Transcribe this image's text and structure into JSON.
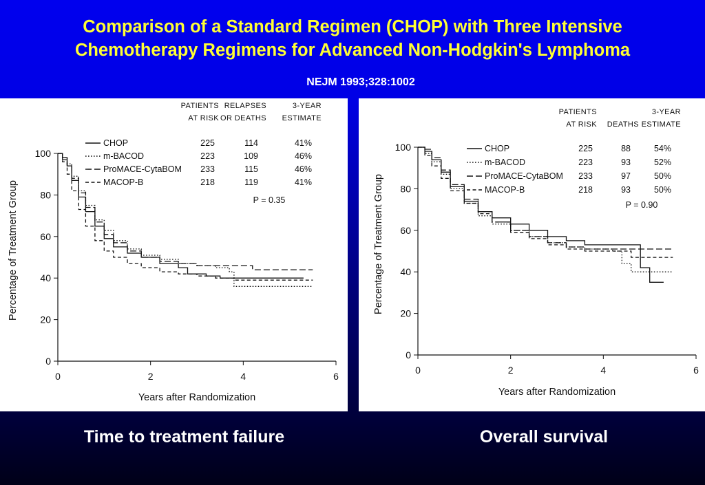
{
  "slide": {
    "title_line1": "Comparison of a Standard Regimen (CHOP) with Three Intensive",
    "title_line2": "Chemotherapy Regimens for Advanced  Non-Hodgkin's Lymphoma",
    "citation": "NEJM 1993;328:1002",
    "caption_left": "Time to treatment failure",
    "caption_right": "Overall survival",
    "colors": {
      "title": "#ffff33",
      "background": "#0000e6",
      "caption": "#ffffff"
    }
  },
  "chart_data": [
    {
      "type": "line",
      "xlabel": "Years after Randomization",
      "ylabel": "Percentage of Treatment Group",
      "xlim": [
        0,
        6
      ],
      "ylim": [
        0,
        100
      ],
      "xticks": [
        "0",
        "2",
        "4",
        "6"
      ],
      "yticks": [
        "0",
        "20",
        "40",
        "60",
        "80",
        "100"
      ],
      "table_headers": [
        "PATIENTS AT RISK",
        "RELAPSES OR DEATHS",
        "3-YEAR ESTIMATE"
      ],
      "p_value": "P = 0.35",
      "legend_position": "top",
      "series": [
        {
          "name": "CHOP",
          "style": "solid",
          "at_risk": "225",
          "events": "114",
          "estimate": "41%",
          "x": [
            0,
            0.1,
            0.2,
            0.3,
            0.45,
            0.6,
            0.8,
            1.0,
            1.2,
            1.5,
            1.8,
            2.2,
            2.6,
            2.8,
            3.2,
            3.5,
            3.8,
            4.2,
            4.6,
            5.3
          ],
          "y": [
            100,
            98,
            94,
            87,
            79,
            72,
            65,
            59,
            55,
            52,
            50,
            47,
            45,
            42,
            41,
            40,
            40,
            40,
            40,
            40
          ]
        },
        {
          "name": "m-BACOD",
          "style": "dotted",
          "at_risk": "223",
          "events": "109",
          "estimate": "46%",
          "x": [
            0,
            0.1,
            0.2,
            0.3,
            0.45,
            0.6,
            0.8,
            1.0,
            1.2,
            1.5,
            1.8,
            2.2,
            2.6,
            3.0,
            3.4,
            3.7,
            3.8,
            4.2,
            4.6,
            5.0,
            5.5
          ],
          "y": [
            100,
            98,
            95,
            89,
            82,
            75,
            68,
            63,
            58,
            54,
            51,
            49,
            47,
            46,
            45,
            43,
            36,
            36,
            36,
            36,
            36
          ]
        },
        {
          "name": "ProMACE-CytaBOM",
          "style": "longdash",
          "at_risk": "233",
          "events": "115",
          "estimate": "46%",
          "x": [
            0,
            0.1,
            0.2,
            0.3,
            0.45,
            0.6,
            0.8,
            1.0,
            1.2,
            1.5,
            1.8,
            2.2,
            2.6,
            3.0,
            3.4,
            4.0,
            4.2,
            4.6,
            5.0,
            5.5
          ],
          "y": [
            100,
            97,
            94,
            88,
            81,
            74,
            67,
            61,
            57,
            53,
            50,
            48,
            47,
            46,
            46,
            46,
            44,
            44,
            44,
            44
          ]
        },
        {
          "name": "MACOP-B",
          "style": "dashed",
          "at_risk": "218",
          "events": "119",
          "estimate": "41%",
          "x": [
            0,
            0.1,
            0.2,
            0.3,
            0.45,
            0.6,
            0.8,
            1.0,
            1.2,
            1.5,
            1.8,
            2.2,
            2.6,
            3.0,
            3.4,
            3.8,
            4.2,
            4.6,
            5.0,
            5.5
          ],
          "y": [
            100,
            96,
            90,
            82,
            73,
            65,
            58,
            53,
            50,
            47,
            45,
            43,
            42,
            41,
            40,
            39,
            39,
            39,
            39,
            39
          ]
        }
      ]
    },
    {
      "type": "line",
      "xlabel": "Years after Randomization",
      "ylabel": "Percentage of Treatment Group",
      "xlim": [
        0,
        6
      ],
      "ylim": [
        0,
        100
      ],
      "xticks": [
        "0",
        "2",
        "4",
        "6"
      ],
      "yticks": [
        "0",
        "20",
        "40",
        "60",
        "80",
        "100"
      ],
      "table_headers": [
        "PATIENTS AT RISK",
        "DEATHS",
        "3-YEAR ESTIMATE"
      ],
      "p_value": "P = 0.90",
      "legend_position": "top",
      "series": [
        {
          "name": "CHOP",
          "style": "solid",
          "at_risk": "225",
          "events": "88",
          "estimate": "54%",
          "x": [
            0,
            0.15,
            0.3,
            0.5,
            0.7,
            1.0,
            1.3,
            1.6,
            2.0,
            2.4,
            2.8,
            3.2,
            3.6,
            4.0,
            4.4,
            4.8,
            4.8,
            4.9,
            5.0,
            5.3
          ],
          "y": [
            100,
            98,
            94,
            88,
            81,
            74,
            69,
            66,
            63,
            60,
            57,
            55,
            53,
            53,
            53,
            53,
            42,
            42,
            35,
            35
          ]
        },
        {
          "name": "m-BACOD",
          "style": "dotted",
          "at_risk": "223",
          "events": "93",
          "estimate": "52%",
          "x": [
            0,
            0.15,
            0.3,
            0.5,
            0.7,
            1.0,
            1.3,
            1.6,
            2.0,
            2.4,
            2.8,
            3.2,
            3.6,
            4.0,
            4.2,
            4.4,
            4.6,
            5.0,
            5.5
          ],
          "y": [
            100,
            97,
            93,
            87,
            80,
            73,
            67,
            63,
            60,
            57,
            54,
            52,
            51,
            51,
            50,
            44,
            40,
            40,
            40
          ]
        },
        {
          "name": "ProMACE-CytaBOM",
          "style": "longdash",
          "at_risk": "233",
          "events": "97",
          "estimate": "50%",
          "x": [
            0,
            0.15,
            0.3,
            0.5,
            0.7,
            1.0,
            1.3,
            1.6,
            2.0,
            2.4,
            2.8,
            3.2,
            3.6,
            4.0,
            4.4,
            4.8,
            5.0,
            5.5
          ],
          "y": [
            100,
            99,
            95,
            89,
            82,
            75,
            69,
            64,
            60,
            57,
            54,
            52,
            51,
            51,
            51,
            51,
            51,
            51
          ]
        },
        {
          "name": "MACOP-B",
          "style": "dashed",
          "at_risk": "218",
          "events": "93",
          "estimate": "50%",
          "x": [
            0,
            0.15,
            0.3,
            0.5,
            0.7,
            1.0,
            1.3,
            1.6,
            2.0,
            2.4,
            2.8,
            3.2,
            3.6,
            4.0,
            4.2,
            4.6,
            5.0,
            5.5
          ],
          "y": [
            100,
            96,
            91,
            85,
            79,
            73,
            68,
            64,
            59,
            56,
            53,
            51,
            50,
            50,
            50,
            47,
            47,
            47
          ]
        }
      ]
    }
  ]
}
